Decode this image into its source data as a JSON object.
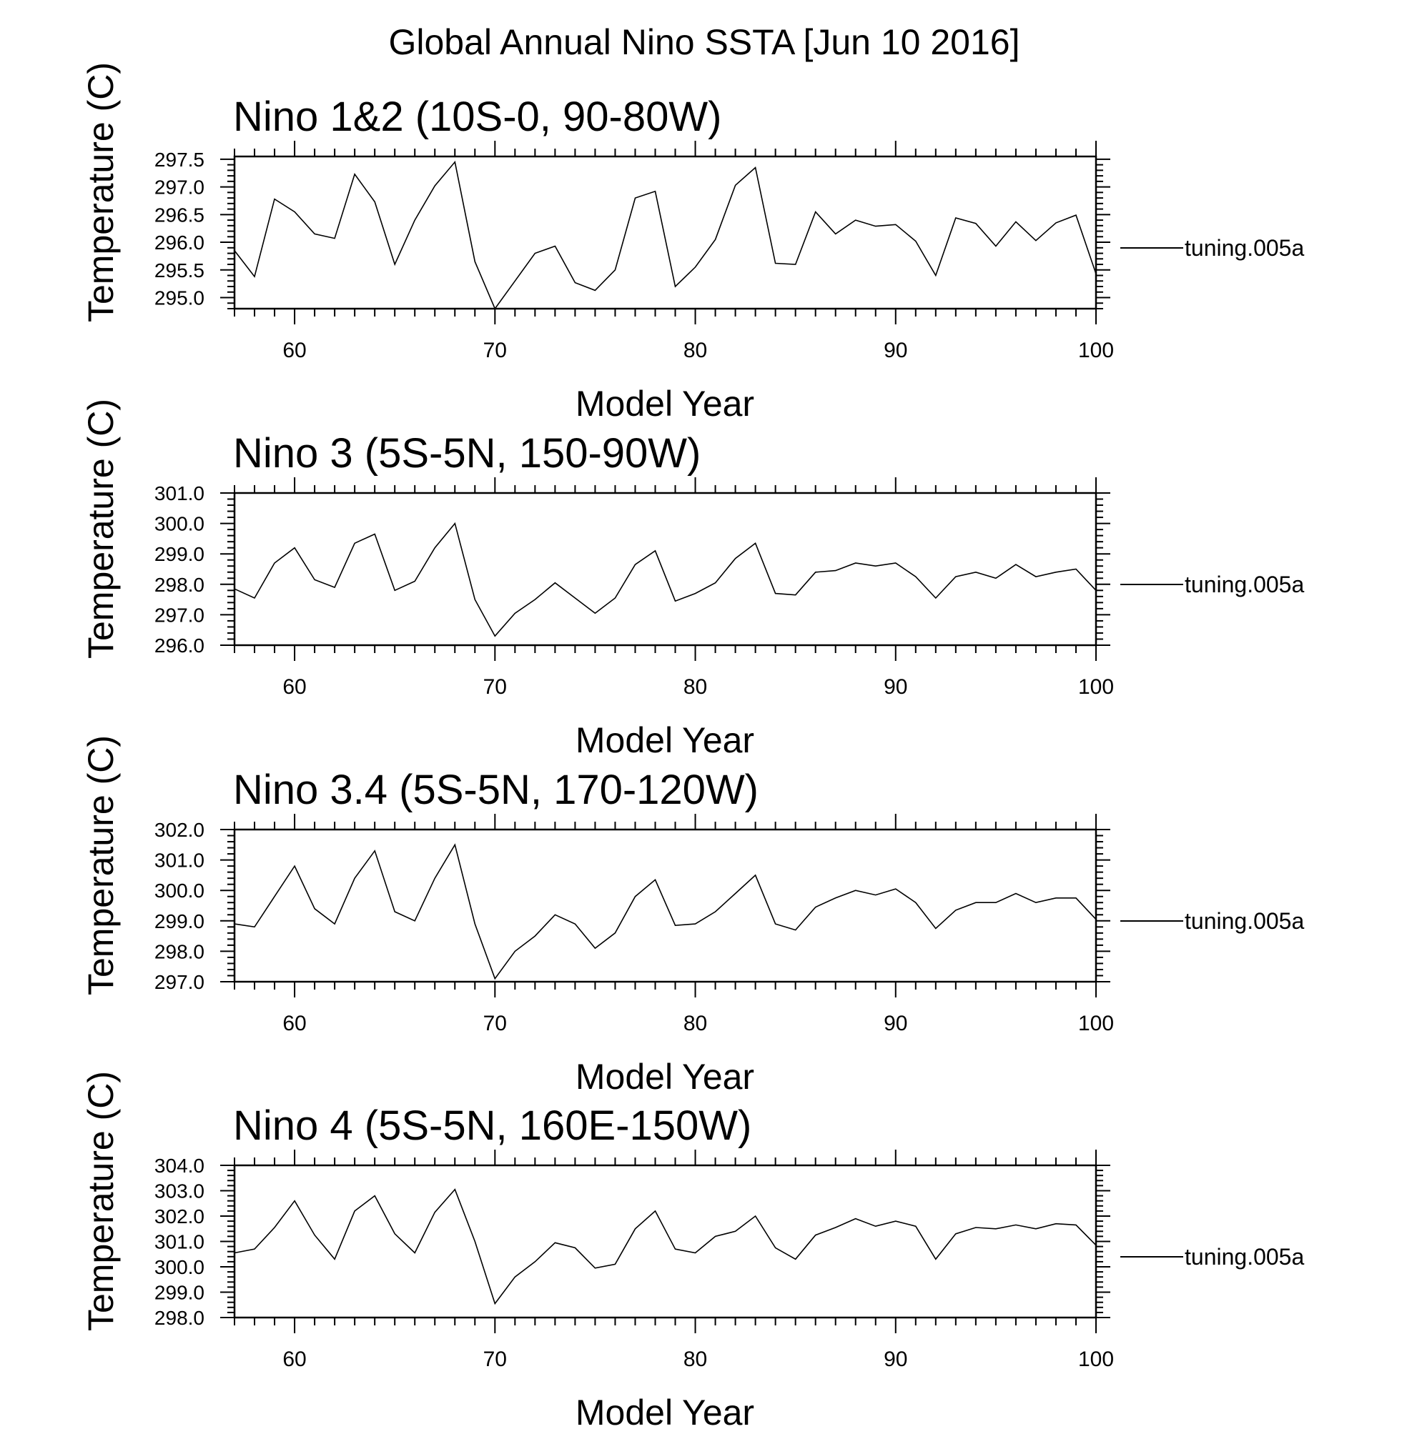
{
  "figure": {
    "title": "Global Annual Nino SSTA [Jun 10 2016]"
  },
  "chart_data": [
    {
      "type": "line",
      "title": "Nino 1&2 (10S-0, 90-80W)",
      "xlabel": "Model Year",
      "ylabel": "Temperature (C)",
      "xlim": [
        57,
        100
      ],
      "ylim": [
        294.8,
        297.55
      ],
      "xticks": [
        60,
        70,
        80,
        90,
        100
      ],
      "yticks": [
        "295.0",
        "295.5",
        "296.0",
        "296.5",
        "297.0",
        "297.5"
      ],
      "legend": "right",
      "series": [
        {
          "name": "tuning.005a",
          "x": [
            57,
            58,
            59,
            60,
            61,
            62,
            63,
            64,
            65,
            66,
            67,
            68,
            69,
            70,
            71,
            72,
            73,
            74,
            75,
            76,
            77,
            78,
            79,
            80,
            81,
            82,
            83,
            84,
            85,
            86,
            87,
            88,
            89,
            90,
            91,
            92,
            93,
            94,
            95,
            96,
            97,
            98,
            99,
            100
          ],
          "y": [
            295.85,
            295.38,
            296.78,
            296.55,
            296.15,
            296.07,
            297.23,
            296.73,
            295.6,
            296.4,
            297.02,
            297.45,
            295.65,
            294.8,
            295.3,
            295.8,
            295.93,
            295.27,
            295.13,
            295.5,
            296.8,
            296.92,
            295.2,
            295.55,
            296.05,
            297.03,
            297.35,
            295.62,
            295.6,
            296.55,
            296.15,
            296.4,
            296.29,
            296.32,
            296.02,
            295.4,
            296.44,
            296.34,
            295.93,
            296.37,
            296.03,
            296.35,
            296.49,
            295.43
          ]
        }
      ]
    },
    {
      "type": "line",
      "title": "Nino 3 (5S-5N, 150-90W)",
      "xlabel": "Model Year",
      "ylabel": "Temperature (C)",
      "xlim": [
        57,
        100
      ],
      "ylim": [
        296.0,
        301.0
      ],
      "xticks": [
        60,
        70,
        80,
        90,
        100
      ],
      "yticks": [
        "296.0",
        "297.0",
        "298.0",
        "299.0",
        "300.0",
        "301.0"
      ],
      "legend": "right",
      "series": [
        {
          "name": "tuning.005a",
          "x": [
            57,
            58,
            59,
            60,
            61,
            62,
            63,
            64,
            65,
            66,
            67,
            68,
            69,
            70,
            71,
            72,
            73,
            74,
            75,
            76,
            77,
            78,
            79,
            80,
            81,
            82,
            83,
            84,
            85,
            86,
            87,
            88,
            89,
            90,
            91,
            92,
            93,
            94,
            95,
            96,
            97,
            98,
            99,
            100
          ],
          "y": [
            297.85,
            297.55,
            298.7,
            299.2,
            298.15,
            297.9,
            299.35,
            299.65,
            297.8,
            298.1,
            299.2,
            300.0,
            297.5,
            296.3,
            297.05,
            297.5,
            298.05,
            297.55,
            297.05,
            297.55,
            298.65,
            299.1,
            297.45,
            297.7,
            298.05,
            298.85,
            299.35,
            297.7,
            297.65,
            298.4,
            298.45,
            298.7,
            298.6,
            298.7,
            298.25,
            297.55,
            298.25,
            298.4,
            298.2,
            298.65,
            298.25,
            298.4,
            298.5,
            297.8
          ]
        }
      ]
    },
    {
      "type": "line",
      "title": "Nino 3.4 (5S-5N, 170-120W)",
      "xlabel": "Model Year",
      "ylabel": "Temperature (C)",
      "xlim": [
        57,
        100
      ],
      "ylim": [
        297.0,
        302.0
      ],
      "xticks": [
        60,
        70,
        80,
        90,
        100
      ],
      "yticks": [
        "297.0",
        "298.0",
        "299.0",
        "300.0",
        "301.0",
        "302.0"
      ],
      "legend": "right",
      "series": [
        {
          "name": "tuning.005a",
          "x": [
            57,
            58,
            59,
            60,
            61,
            62,
            63,
            64,
            65,
            66,
            67,
            68,
            69,
            70,
            71,
            72,
            73,
            74,
            75,
            76,
            77,
            78,
            79,
            80,
            81,
            82,
            83,
            84,
            85,
            86,
            87,
            88,
            89,
            90,
            91,
            92,
            93,
            94,
            95,
            96,
            97,
            98,
            99,
            100
          ],
          "y": [
            298.9,
            298.8,
            299.8,
            300.8,
            299.4,
            298.9,
            300.4,
            301.3,
            299.3,
            299.0,
            300.4,
            301.5,
            298.9,
            297.1,
            298.0,
            298.5,
            299.2,
            298.9,
            298.1,
            298.6,
            299.8,
            300.35,
            298.85,
            298.9,
            299.3,
            299.9,
            300.5,
            298.9,
            298.7,
            299.45,
            299.75,
            300.0,
            299.85,
            300.05,
            299.6,
            298.75,
            299.35,
            299.6,
            299.6,
            299.9,
            299.6,
            299.75,
            299.75,
            299.05
          ]
        }
      ]
    },
    {
      "type": "line",
      "title": "Nino 4 (5S-5N, 160E-150W)",
      "xlabel": "Model Year",
      "ylabel": "Temperature (C)",
      "xlim": [
        57,
        100
      ],
      "ylim": [
        298.0,
        304.0
      ],
      "xticks": [
        60,
        70,
        80,
        90,
        100
      ],
      "yticks": [
        "298.0",
        "299.0",
        "300.0",
        "301.0",
        "302.0",
        "303.0",
        "304.0"
      ],
      "legend": "right",
      "series": [
        {
          "name": "tuning.005a",
          "x": [
            57,
            58,
            59,
            60,
            61,
            62,
            63,
            64,
            65,
            66,
            67,
            68,
            69,
            70,
            71,
            72,
            73,
            74,
            75,
            76,
            77,
            78,
            79,
            80,
            81,
            82,
            83,
            84,
            85,
            86,
            87,
            88,
            89,
            90,
            91,
            92,
            93,
            94,
            95,
            96,
            97,
            98,
            99,
            100
          ],
          "y": [
            300.55,
            300.7,
            301.55,
            302.6,
            301.25,
            300.3,
            302.2,
            302.8,
            301.3,
            300.55,
            302.15,
            303.05,
            301.0,
            298.55,
            299.6,
            300.2,
            300.95,
            300.75,
            299.95,
            300.1,
            301.5,
            302.2,
            300.7,
            300.55,
            301.2,
            301.4,
            302.0,
            300.75,
            300.3,
            301.25,
            301.55,
            301.9,
            301.6,
            301.8,
            301.6,
            300.3,
            301.3,
            301.55,
            301.5,
            301.65,
            301.5,
            301.7,
            301.65,
            300.85
          ]
        }
      ]
    }
  ]
}
